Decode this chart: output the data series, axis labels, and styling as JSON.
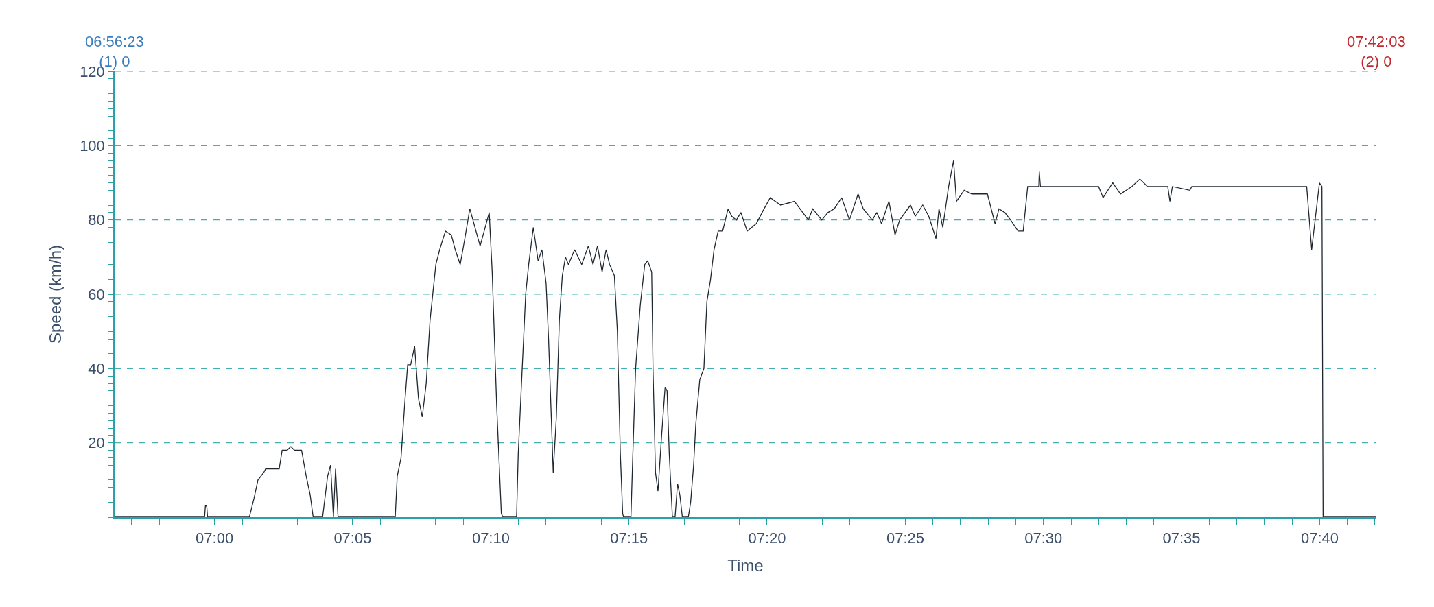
{
  "chart_data": {
    "type": "line",
    "xlabel": "Time",
    "ylabel": "Speed (km/h)",
    "x": [
      6.93972,
      6.994,
      6.9945,
      6.9953,
      6.9958,
      7.021,
      7.0238,
      7.0262,
      7.0297,
      7.0308,
      7.039,
      7.0408,
      7.0437,
      7.046,
      7.0483,
      7.0525,
      7.0553,
      7.0577,
      7.0595,
      7.0652,
      7.0682,
      7.07,
      7.0717,
      7.073,
      7.0745,
      7.109,
      7.1102,
      7.1125,
      7.1148,
      7.1165,
      7.1183,
      7.1207,
      7.123,
      7.1253,
      7.1277,
      7.13,
      7.1335,
      7.1358,
      7.1393,
      7.1428,
      7.1452,
      7.1482,
      7.151,
      7.154,
      7.1602,
      7.1657,
      7.1675,
      7.1702,
      7.173,
      7.174,
      7.1822,
      7.1832,
      7.1858,
      7.1877,
      7.1895,
      7.1923,
      7.1952,
      7.1975,
      7.2,
      7.2015,
      7.2043,
      7.2062,
      7.208,
      7.2098,
      7.2117,
      7.2135,
      7.2172,
      7.2215,
      7.2255,
      7.2283,
      7.231,
      7.2338,
      7.2362,
      7.2383,
      7.2412,
      7.243,
      7.2448,
      7.2462,
      7.2467,
      7.2512,
      7.2522,
      7.254,
      7.2568,
      7.2595,
      7.2613,
      7.2637,
      7.2645,
      7.266,
      7.2675,
      7.2697,
      7.2718,
      7.273,
      7.2743,
      7.2762,
      7.2778,
      7.2793,
      7.2807,
      7.2822,
      7.2858,
      7.2872,
      7.289,
      7.2903,
      7.2927,
      7.2952,
      7.297,
      7.2992,
      7.3013,
      7.3038,
      7.3065,
      7.3098,
      7.312,
      7.3148,
      7.3175,
      7.3213,
      7.3268,
      7.3315,
      7.3352,
      7.3415,
      7.3498,
      7.3582,
      7.3608,
      7.3663,
      7.37,
      7.3738,
      7.3783,
      7.383,
      7.3882,
      7.3913,
      7.3968,
      7.3995,
      7.4023,
      7.4068,
      7.4105,
      7.4133,
      7.4198,
      7.4227,
      7.4272,
      7.4308,
      7.4352,
      7.437,
      7.4393,
      7.4428,
      7.4458,
      7.4475,
      7.4522,
      7.4568,
      7.4627,
      7.4662,
      7.4708,
      7.4732,
      7.4767,
      7.4802,
      7.4847,
      7.4878,
      7.4905,
      7.4972,
      7.4975,
      7.4982,
      7.5333,
      7.536,
      7.5418,
      7.5465,
      7.5533,
      7.5582,
      7.5628,
      7.575,
      7.5763,
      7.5778,
      7.5883,
      7.5895,
      7.6588,
      7.6618,
      7.6665,
      7.668,
      7.6687,
      7.70083
    ],
    "series": [
      {
        "color": "#1e2730",
        "values": [
          0,
          0,
          3,
          3,
          0,
          0,
          5,
          10,
          12,
          13,
          13,
          18,
          18,
          19,
          18,
          18,
          11,
          6,
          0,
          0,
          11,
          14,
          0,
          13,
          0,
          0,
          11,
          16,
          31,
          41,
          41,
          46,
          32,
          27,
          36,
          53,
          68,
          72,
          77,
          76,
          72,
          68,
          75,
          83,
          73,
          82,
          66,
          30,
          1,
          0,
          0,
          17,
          42,
          60,
          68,
          78,
          69,
          72,
          63,
          48,
          12,
          27,
          53,
          65,
          70,
          68,
          72,
          68,
          73,
          68,
          73,
          66,
          72,
          68,
          65,
          50,
          17,
          1,
          0,
          0,
          15,
          40,
          57,
          68,
          69,
          66,
          40,
          12,
          7,
          22,
          35,
          34,
          17,
          0,
          0,
          9,
          6,
          0,
          0,
          4,
          14,
          25,
          37,
          40,
          58,
          64,
          72,
          77,
          77,
          83,
          81,
          80,
          82,
          77,
          79,
          83,
          86,
          84,
          85,
          80,
          83,
          80,
          82,
          83,
          86,
          80,
          87,
          83,
          80,
          82,
          79,
          85,
          76,
          80,
          84,
          81,
          84,
          81,
          75,
          83,
          78,
          89,
          96,
          85,
          88,
          87,
          87,
          87,
          79,
          83,
          82,
          80,
          77,
          77,
          89,
          89,
          93,
          89,
          89,
          86,
          90,
          87,
          89,
          91,
          89,
          89,
          85,
          89,
          88,
          89,
          89,
          72,
          90,
          89,
          0,
          0
        ]
      }
    ],
    "xlim": [
      6.93972,
      7.70083
    ],
    "xticks": [
      {
        "value": 6.95,
        "label": null
      },
      {
        "value": 6.9667,
        "label": null
      },
      {
        "value": 6.9833,
        "label": null
      },
      {
        "value": 7.0,
        "label": "07:00"
      },
      {
        "value": 7.0167,
        "label": null
      },
      {
        "value": 7.0333,
        "label": null
      },
      {
        "value": 7.05,
        "label": null
      },
      {
        "value": 7.0667,
        "label": null
      },
      {
        "value": 7.0833,
        "label": "07:05"
      },
      {
        "value": 7.1,
        "label": null
      },
      {
        "value": 7.1167,
        "label": null
      },
      {
        "value": 7.1333,
        "label": null
      },
      {
        "value": 7.15,
        "label": null
      },
      {
        "value": 7.1667,
        "label": "07:10"
      },
      {
        "value": 7.1833,
        "label": null
      },
      {
        "value": 7.2,
        "label": null
      },
      {
        "value": 7.2167,
        "label": null
      },
      {
        "value": 7.2333,
        "label": null
      },
      {
        "value": 7.25,
        "label": "07:15"
      },
      {
        "value": 7.2667,
        "label": null
      },
      {
        "value": 7.2833,
        "label": null
      },
      {
        "value": 7.3,
        "label": null
      },
      {
        "value": 7.3167,
        "label": null
      },
      {
        "value": 7.3333,
        "label": "07:20"
      },
      {
        "value": 7.35,
        "label": null
      },
      {
        "value": 7.3667,
        "label": null
      },
      {
        "value": 7.3833,
        "label": null
      },
      {
        "value": 7.4,
        "label": null
      },
      {
        "value": 7.4167,
        "label": "07:25"
      },
      {
        "value": 7.4333,
        "label": null
      },
      {
        "value": 7.45,
        "label": null
      },
      {
        "value": 7.4667,
        "label": null
      },
      {
        "value": 7.4833,
        "label": null
      },
      {
        "value": 7.5,
        "label": "07:30"
      },
      {
        "value": 7.5167,
        "label": null
      },
      {
        "value": 7.5333,
        "label": null
      },
      {
        "value": 7.55,
        "label": null
      },
      {
        "value": 7.5667,
        "label": null
      },
      {
        "value": 7.5833,
        "label": "07:35"
      },
      {
        "value": 7.6,
        "label": null
      },
      {
        "value": 7.6167,
        "label": null
      },
      {
        "value": 7.6333,
        "label": null
      },
      {
        "value": 7.65,
        "label": null
      },
      {
        "value": 7.6667,
        "label": "07:40"
      },
      {
        "value": 7.6833,
        "label": null
      },
      {
        "value": 7.7,
        "label": null
      }
    ],
    "ylim": [
      0,
      120
    ],
    "yticks": [
      {
        "value": 0,
        "label": null
      },
      {
        "value": 2,
        "label": null
      },
      {
        "value": 4,
        "label": null
      },
      {
        "value": 6,
        "label": null
      },
      {
        "value": 8,
        "label": null
      },
      {
        "value": 10,
        "label": null
      },
      {
        "value": 12,
        "label": null
      },
      {
        "value": 14,
        "label": null
      },
      {
        "value": 16,
        "label": null
      },
      {
        "value": 18,
        "label": null
      },
      20,
      {
        "value": 22,
        "label": null
      },
      {
        "value": 24,
        "label": null
      },
      {
        "value": 26,
        "label": null
      },
      {
        "value": 28,
        "label": null
      },
      {
        "value": 30,
        "label": null
      },
      {
        "value": 32,
        "label": null
      },
      {
        "value": 34,
        "label": null
      },
      {
        "value": 36,
        "label": null
      },
      {
        "value": 38,
        "label": null
      },
      40,
      {
        "value": 42,
        "label": null
      },
      {
        "value": 44,
        "label": null
      },
      {
        "value": 46,
        "label": null
      },
      {
        "value": 48,
        "label": null
      },
      {
        "value": 50,
        "label": null
      },
      {
        "value": 52,
        "label": null
      },
      {
        "value": 54,
        "label": null
      },
      {
        "value": 56,
        "label": null
      },
      {
        "value": 58,
        "label": null
      },
      60,
      {
        "value": 62,
        "label": null
      },
      {
        "value": 64,
        "label": null
      },
      {
        "value": 66,
        "label": null
      },
      {
        "value": 68,
        "label": null
      },
      {
        "value": 70,
        "label": null
      },
      {
        "value": 72,
        "label": null
      },
      {
        "value": 74,
        "label": null
      },
      {
        "value": 76,
        "label": null
      },
      {
        "value": 78,
        "label": null
      },
      80,
      {
        "value": 82,
        "label": null
      },
      {
        "value": 84,
        "label": null
      },
      {
        "value": 86,
        "label": null
      },
      {
        "value": 88,
        "label": null
      },
      {
        "value": 90,
        "label": null
      },
      {
        "value": 92,
        "label": null
      },
      {
        "value": 94,
        "label": null
      },
      {
        "value": 96,
        "label": null
      },
      {
        "value": 98,
        "label": null
      },
      100,
      {
        "value": 102,
        "label": null
      },
      {
        "value": 104,
        "label": null
      },
      {
        "value": 106,
        "label": null
      },
      {
        "value": 108,
        "label": null
      },
      {
        "value": 110,
        "label": null
      },
      {
        "value": 112,
        "label": null
      },
      {
        "value": 114,
        "label": null
      },
      {
        "value": 116,
        "label": null
      },
      {
        "value": 118,
        "label": null
      },
      120
    ],
    "grid": "y",
    "marker": "none",
    "line_style": "solid",
    "ref_lines": [
      {
        "axis": "x",
        "value": 6.93972,
        "color": "#3a7dbf"
      },
      {
        "axis": "x",
        "value": 7.70083,
        "color": "#c0272d"
      }
    ],
    "annotations": [
      "06:56:23\n(1) 0",
      "07:42:03\n(2) 0"
    ]
  }
}
